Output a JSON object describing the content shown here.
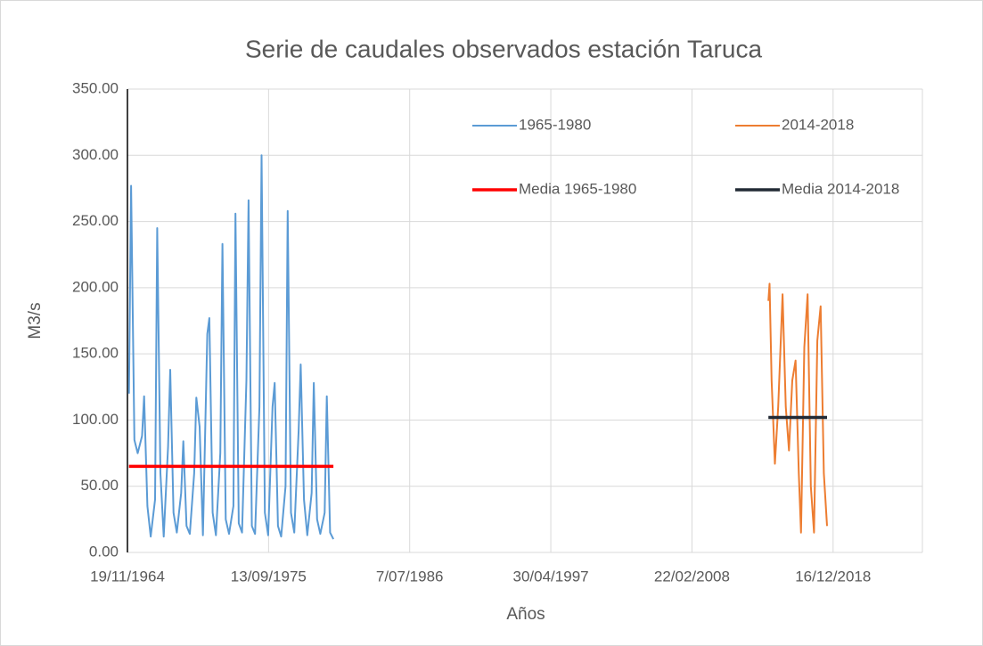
{
  "chart_data": {
    "type": "line",
    "title": "Serie de caudales observados estación Taruca",
    "x_label": "Años",
    "y_label": "M3/s",
    "xlim": [
      "1964-11-19",
      "2025-10-20"
    ],
    "xticks": [
      {
        "value": "1964-11-19",
        "label": "19/11/1964"
      },
      {
        "value": "1975-09-13",
        "label": "13/09/1975"
      },
      {
        "value": "1986-07-07",
        "label": "7/07/1986"
      },
      {
        "value": "1997-04-30",
        "label": "30/04/1997"
      },
      {
        "value": "2008-02-22",
        "label": "22/02/2008"
      },
      {
        "value": "2018-12-16",
        "label": "16/12/2018"
      }
    ],
    "ylim": [
      0,
      350
    ],
    "yticks": [
      {
        "value": 0,
        "label": "0.00"
      },
      {
        "value": 50,
        "label": "50.00"
      },
      {
        "value": 100,
        "label": "100.00"
      },
      {
        "value": 150,
        "label": "150.00"
      },
      {
        "value": 200,
        "label": "200.00"
      },
      {
        "value": 250,
        "label": "250.00"
      },
      {
        "value": 300,
        "label": "300.00"
      },
      {
        "value": 350,
        "label": "350.00"
      }
    ],
    "grid": true,
    "series": [
      {
        "name": "1965-1980",
        "color": "#5b9bd5",
        "width": 2,
        "x": [
          "1965-01-01",
          "1965-03-01",
          "1965-06-01",
          "1965-09-01",
          "1966-01-01",
          "1966-03-01",
          "1966-06-01",
          "1966-09-01",
          "1967-01-01",
          "1967-03-01",
          "1967-06-01",
          "1967-09-01",
          "1968-01-01",
          "1968-03-01",
          "1968-06-01",
          "1968-09-01",
          "1969-01-01",
          "1969-03-01",
          "1969-06-01",
          "1969-09-01",
          "1970-01-01",
          "1970-03-01",
          "1970-06-01",
          "1970-09-01",
          "1971-01-01",
          "1971-03-01",
          "1971-06-01",
          "1971-09-01",
          "1972-01-01",
          "1972-03-01",
          "1972-06-01",
          "1972-09-01",
          "1973-01-01",
          "1973-03-01",
          "1973-06-01",
          "1973-09-01",
          "1974-01-01",
          "1974-03-01",
          "1974-06-01",
          "1974-09-01",
          "1975-01-01",
          "1975-03-01",
          "1975-06-01",
          "1975-09-01",
          "1976-01-01",
          "1976-03-01",
          "1976-06-01",
          "1976-09-01",
          "1977-01-01",
          "1977-03-01",
          "1977-06-01",
          "1977-09-01",
          "1978-01-01",
          "1978-03-01",
          "1978-06-01",
          "1978-09-01",
          "1979-01-01",
          "1979-03-01",
          "1979-06-01",
          "1979-09-01",
          "1980-01-01",
          "1980-03-01",
          "1980-06-01",
          "1980-09-01"
        ],
        "values": [
          120,
          277,
          85,
          75,
          88,
          118,
          35,
          12,
          40,
          245,
          60,
          12,
          80,
          138,
          30,
          15,
          45,
          84,
          20,
          14,
          60,
          117,
          95,
          13,
          165,
          177,
          30,
          13,
          75,
          233,
          25,
          14,
          35,
          256,
          22,
          15,
          130,
          266,
          20,
          14,
          110,
          300,
          30,
          13,
          110,
          128,
          20,
          12,
          50,
          258,
          30,
          15,
          92,
          142,
          40,
          13,
          45,
          128,
          25,
          14,
          30,
          118,
          15,
          10
        ]
      },
      {
        "name": "2014-2018",
        "color": "#ed7d31",
        "width": 2,
        "x": [
          "2014-01-01",
          "2014-02-01",
          "2014-04-01",
          "2014-07-01",
          "2014-10-01",
          "2015-02-01",
          "2015-05-01",
          "2015-08-01",
          "2015-11-01",
          "2016-02-01",
          "2016-05-01",
          "2016-07-01",
          "2016-10-01",
          "2017-01-01",
          "2017-04-01",
          "2017-07-01",
          "2017-10-01",
          "2018-01-01",
          "2018-04-01",
          "2018-07-01"
        ],
        "values": [
          190,
          203,
          130,
          67,
          110,
          195,
          110,
          77,
          130,
          145,
          60,
          15,
          155,
          195,
          50,
          15,
          160,
          186,
          60,
          20
        ]
      },
      {
        "name": "Media 1965-1980",
        "color": "#ff0000",
        "width": 3.5,
        "x": [
          "1965-01-01",
          "1980-09-01"
        ],
        "values": [
          65,
          65
        ]
      },
      {
        "name": "Media 2014-2018",
        "color": "#222a35",
        "width": 3.5,
        "x": [
          "2014-01-01",
          "2018-07-01"
        ],
        "values": [
          102,
          102
        ]
      }
    ]
  }
}
